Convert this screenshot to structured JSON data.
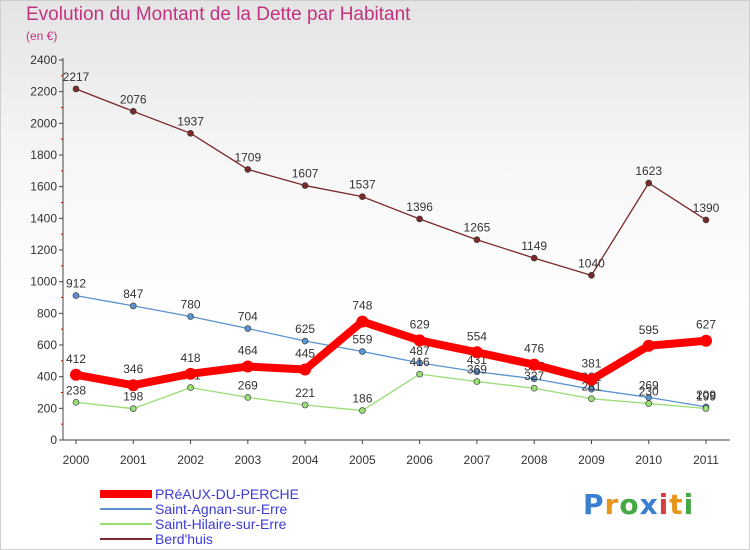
{
  "chart_data": {
    "type": "line",
    "title": "Evolution du Montant de la Dette par Habitant",
    "subtitle": "(en €)",
    "x": [
      "2000",
      "2001",
      "2002",
      "2003",
      "2004",
      "2005",
      "2006",
      "2007",
      "2008",
      "2009",
      "2010",
      "2011"
    ],
    "ylim": [
      0,
      2400
    ],
    "yticks": [
      0,
      200,
      400,
      600,
      800,
      1000,
      1200,
      1400,
      1600,
      1800,
      2000,
      2200,
      2400
    ],
    "grid": false,
    "legend_position": "bottom-left",
    "series": [
      {
        "name": "PRéAUX-DU-PERCHE",
        "color": "#ff0000",
        "values": [
          412,
          346,
          418,
          464,
          445,
          748,
          629,
          554,
          476,
          381,
          595,
          627
        ]
      },
      {
        "name": "Saint-Agnan-sur-Erre",
        "color": "#5b93cf",
        "values": [
          912,
          847,
          780,
          704,
          625,
          559,
          487,
          431,
          387,
          321,
          269,
          209
        ]
      },
      {
        "name": "Saint-Hilaire-sur-Erre",
        "color": "#99dd77",
        "values": [
          238,
          198,
          331,
          269,
          221,
          186,
          416,
          369,
          327,
          261,
          230,
          199
        ]
      },
      {
        "name": "Berd'huis",
        "color": "#7a2a2a",
        "values": [
          2217,
          2076,
          1937,
          1709,
          1607,
          1537,
          1396,
          1265,
          1149,
          1040,
          1623,
          1390
        ]
      }
    ]
  },
  "logo": {
    "text": "Proxiti"
  }
}
